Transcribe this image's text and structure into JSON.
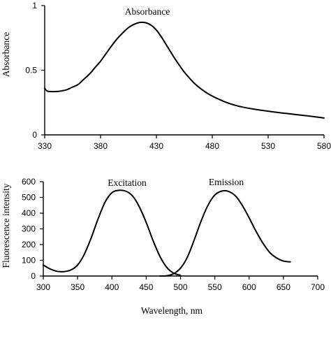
{
  "chart_data": [
    {
      "type": "line",
      "ylabel": "Absorbance",
      "xlim": [
        330,
        580
      ],
      "ylim": [
        0,
        1
      ],
      "xticks": [
        330,
        380,
        430,
        480,
        530,
        580
      ],
      "yticks": [
        0,
        0.5,
        1
      ],
      "ytick_labels": [
        "0",
        "0.5",
        "1"
      ],
      "grid": false,
      "series": [
        {
          "name": "Absorbance",
          "x": [
            330,
            332,
            335,
            340,
            345,
            350,
            355,
            360,
            365,
            370,
            375,
            380,
            385,
            390,
            395,
            400,
            405,
            410,
            415,
            420,
            425,
            430,
            435,
            440,
            445,
            450,
            455,
            460,
            465,
            470,
            475,
            480,
            490,
            500,
            510,
            520,
            530,
            540,
            550,
            560,
            570,
            580
          ],
          "y": [
            0.36,
            0.34,
            0.335,
            0.335,
            0.34,
            0.35,
            0.37,
            0.39,
            0.43,
            0.47,
            0.52,
            0.57,
            0.63,
            0.69,
            0.745,
            0.79,
            0.83,
            0.855,
            0.87,
            0.868,
            0.85,
            0.81,
            0.75,
            0.68,
            0.61,
            0.545,
            0.485,
            0.435,
            0.39,
            0.355,
            0.325,
            0.3,
            0.26,
            0.23,
            0.21,
            0.195,
            0.183,
            0.172,
            0.162,
            0.152,
            0.142,
            0.13
          ]
        }
      ]
    },
    {
      "type": "line",
      "xlabel": "Wavelength, nm",
      "ylabel": "Fluorescence intensity",
      "xlim": [
        300,
        700
      ],
      "ylim": [
        0,
        600
      ],
      "xticks": [
        300,
        350,
        400,
        450,
        500,
        550,
        600,
        650,
        700
      ],
      "yticks": [
        0,
        100,
        200,
        300,
        400,
        500,
        600
      ],
      "grid": false,
      "series": [
        {
          "name": "Excitation",
          "x": [
            300,
            310,
            320,
            330,
            340,
            350,
            360,
            370,
            380,
            390,
            400,
            410,
            420,
            430,
            440,
            450,
            460,
            470,
            480,
            490,
            500
          ],
          "y": [
            70,
            45,
            30,
            28,
            38,
            70,
            140,
            245,
            365,
            470,
            530,
            545,
            540,
            510,
            440,
            340,
            225,
            125,
            55,
            18,
            5
          ]
        },
        {
          "name": "Emission",
          "x": [
            470,
            480,
            490,
            500,
            510,
            520,
            530,
            540,
            550,
            560,
            570,
            580,
            590,
            600,
            610,
            620,
            630,
            640,
            650,
            660
          ],
          "y": [
            0,
            2,
            15,
            50,
            120,
            230,
            350,
            450,
            515,
            540,
            538,
            510,
            450,
            370,
            285,
            210,
            150,
            115,
            95,
            90
          ]
        }
      ],
      "annotations": [
        "Excitation",
        "Emission"
      ]
    }
  ]
}
